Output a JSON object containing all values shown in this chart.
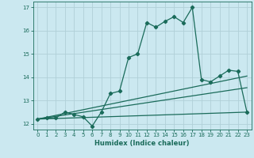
{
  "title": "",
  "xlabel": "Humidex (Indice chaleur)",
  "bg_color": "#cbe8f0",
  "line_color": "#1a6b5a",
  "xlim": [
    -0.5,
    23.5
  ],
  "ylim": [
    11.75,
    17.25
  ],
  "xticks": [
    0,
    1,
    2,
    3,
    4,
    5,
    6,
    7,
    8,
    9,
    10,
    11,
    12,
    13,
    14,
    15,
    16,
    17,
    18,
    19,
    20,
    21,
    22,
    23
  ],
  "yticks": [
    12,
    13,
    14,
    15,
    16,
    17
  ],
  "main_x": [
    0,
    1,
    2,
    3,
    4,
    5,
    6,
    7,
    8,
    9,
    10,
    11,
    12,
    13,
    14,
    15,
    16,
    17,
    18,
    19,
    20,
    21,
    22,
    23
  ],
  "main_y": [
    12.2,
    12.25,
    12.25,
    12.5,
    12.4,
    12.3,
    11.9,
    12.5,
    13.3,
    13.4,
    14.85,
    15.0,
    16.35,
    16.15,
    16.4,
    16.6,
    16.35,
    17.0,
    13.9,
    13.8,
    14.05,
    14.3,
    14.25,
    12.5
  ],
  "line1_x": [
    0,
    23
  ],
  "line1_y": [
    12.2,
    12.5
  ],
  "line2_x": [
    0,
    23
  ],
  "line2_y": [
    12.2,
    14.05
  ],
  "line3_x": [
    0,
    23
  ],
  "line3_y": [
    12.2,
    13.55
  ],
  "grid_color": "#b0d0d8",
  "marker": "D",
  "markersize": 2.2,
  "linewidth": 0.9,
  "tick_fontsize": 5.0,
  "xlabel_fontsize": 6.0
}
